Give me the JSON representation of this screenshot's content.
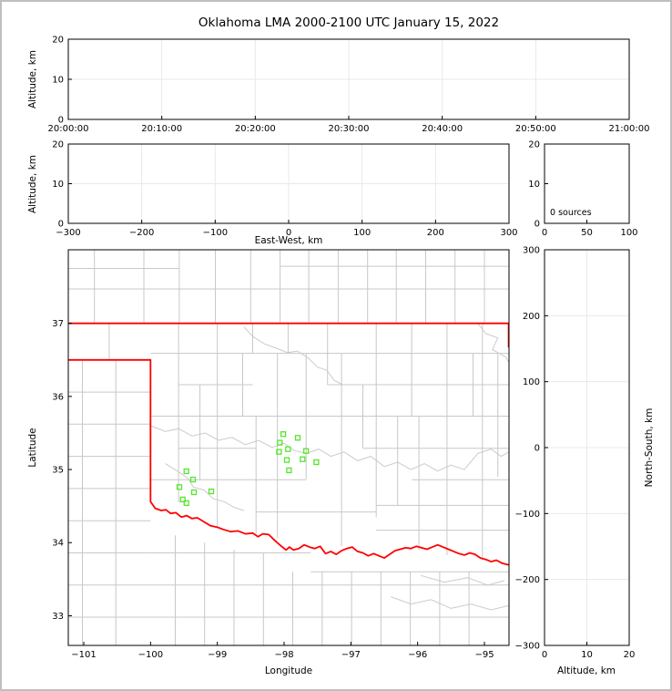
{
  "frame": {
    "background": "#ffffff",
    "border_color": "#bfbfbf"
  },
  "title": "Oklahoma LMA 2000-2100 UTC January 15, 2022",
  "colors": {
    "axis": "#000000",
    "grid": "#e9e9e9",
    "county_lines": "#c8c8c8",
    "rivers": "#cbcbcb",
    "state_border": "#ff0000",
    "source_marker": "#55e62b",
    "text": "#000000"
  },
  "chart_data": [
    {
      "id": "altitude_vs_time",
      "type": "scatter",
      "xlabel": "",
      "ylabel": "Altitude, km",
      "xticks": [
        "20:00:00",
        "20:10:00",
        "20:20:00",
        "20:30:00",
        "20:40:00",
        "20:50:00",
        "21:00:00"
      ],
      "xtick_type": "categorical",
      "ylim": [
        0,
        20
      ],
      "yticks": [
        0,
        10,
        20
      ],
      "grid": true,
      "points": []
    },
    {
      "id": "altitude_vs_east_west",
      "type": "scatter",
      "xlabel": "East-West, km",
      "ylabel": "Altitude, km",
      "xlim": [
        -300,
        300
      ],
      "xticks": [
        -300,
        -200,
        -100,
        0,
        100,
        200,
        300
      ],
      "ylim": [
        0,
        20
      ],
      "yticks": [
        0,
        10,
        20
      ],
      "grid": true,
      "points": []
    },
    {
      "id": "altitude_source_histogram",
      "type": "line",
      "annotation": "0 sources",
      "xlim": [
        0,
        100
      ],
      "xticks": [
        0,
        50,
        100
      ],
      "ylim": [
        0,
        20
      ],
      "yticks": [
        0,
        10,
        20
      ],
      "grid": false,
      "points": []
    },
    {
      "id": "plan_view_map",
      "type": "scatter",
      "xlabel": "Longitude",
      "ylabel": "Latitude",
      "xlim": [
        -101.232,
        -94.632
      ],
      "xticks": [
        -101,
        -100,
        -99,
        -98,
        -97,
        -96,
        -95
      ],
      "ylim": [
        32.594,
        38.006
      ],
      "yticks": [
        33,
        34,
        35,
        36,
        37
      ],
      "grid": false,
      "points": [
        [
          -98.013,
          35.484
        ],
        [
          -97.795,
          35.434
        ],
        [
          -98.064,
          35.367
        ],
        [
          -97.941,
          35.279
        ],
        [
          -97.672,
          35.254
        ],
        [
          -98.077,
          35.242
        ],
        [
          -97.959,
          35.13
        ],
        [
          -97.723,
          35.142
        ],
        [
          -97.518,
          35.101
        ],
        [
          -97.927,
          34.989
        ],
        [
          -99.463,
          34.976
        ],
        [
          -99.364,
          34.864
        ],
        [
          -99.568,
          34.76
        ],
        [
          -99.35,
          34.689
        ],
        [
          -99.091,
          34.702
        ],
        [
          -99.518,
          34.59
        ],
        [
          -99.463,
          34.54
        ]
      ]
    },
    {
      "id": "altitude_vs_north_south",
      "type": "scatter",
      "xlabel": "Altitude, km",
      "ylabel_right": "North-South, km",
      "xlim": [
        0,
        20
      ],
      "xticks": [
        0,
        10,
        20
      ],
      "ylim": [
        -300,
        300
      ],
      "yticks": [
        -300,
        -200,
        -100,
        0,
        100,
        200,
        300
      ],
      "grid": true,
      "points": []
    }
  ],
  "map_layers": {
    "state_border": [
      [
        [
          -101.24,
          37.0
        ],
        [
          -94.6,
          37.0
        ]
      ],
      [
        [
          -94.637,
          37.0
        ],
        [
          -94.637,
          36.67
        ]
      ],
      [
        [
          -101.24,
          36.5
        ],
        [
          -100.0,
          36.5
        ],
        [
          -100.0,
          34.56
        ],
        [
          -99.93,
          34.47
        ],
        [
          -99.84,
          34.44
        ],
        [
          -99.77,
          34.45
        ],
        [
          -99.7,
          34.4
        ],
        [
          -99.62,
          34.41
        ],
        [
          -99.54,
          34.35
        ],
        [
          -99.46,
          34.37
        ],
        [
          -99.38,
          34.33
        ],
        [
          -99.3,
          34.34
        ],
        [
          -99.21,
          34.29
        ],
        [
          -99.1,
          34.23
        ],
        [
          -99.0,
          34.21
        ],
        [
          -98.91,
          34.18
        ],
        [
          -98.8,
          34.15
        ],
        [
          -98.69,
          34.16
        ],
        [
          -98.58,
          34.12
        ],
        [
          -98.47,
          34.13
        ],
        [
          -98.39,
          34.08
        ],
        [
          -98.32,
          34.12
        ],
        [
          -98.23,
          34.11
        ],
        [
          -98.14,
          34.03
        ],
        [
          -98.09,
          33.99
        ],
        [
          -98.04,
          33.95
        ],
        [
          -97.97,
          33.9
        ],
        [
          -97.92,
          33.94
        ],
        [
          -97.86,
          33.9
        ],
        [
          -97.78,
          33.92
        ],
        [
          -97.7,
          33.97
        ],
        [
          -97.62,
          33.94
        ],
        [
          -97.54,
          33.92
        ],
        [
          -97.46,
          33.95
        ],
        [
          -97.38,
          33.85
        ],
        [
          -97.3,
          33.88
        ],
        [
          -97.22,
          33.84
        ],
        [
          -97.14,
          33.89
        ],
        [
          -97.06,
          33.92
        ],
        [
          -96.98,
          33.94
        ],
        [
          -96.9,
          33.88
        ],
        [
          -96.82,
          33.86
        ],
        [
          -96.74,
          33.82
        ],
        [
          -96.66,
          33.85
        ],
        [
          -96.58,
          33.82
        ],
        [
          -96.5,
          33.79
        ],
        [
          -96.42,
          33.84
        ],
        [
          -96.34,
          33.89
        ],
        [
          -96.26,
          33.91
        ],
        [
          -96.18,
          33.93
        ],
        [
          -96.1,
          33.92
        ],
        [
          -96.02,
          33.95
        ],
        [
          -95.94,
          33.93
        ],
        [
          -95.86,
          33.91
        ],
        [
          -95.78,
          33.94
        ],
        [
          -95.7,
          33.97
        ],
        [
          -95.62,
          33.94
        ],
        [
          -95.54,
          33.91
        ],
        [
          -95.46,
          33.88
        ],
        [
          -95.38,
          33.85
        ],
        [
          -95.3,
          33.83
        ],
        [
          -95.22,
          33.86
        ],
        [
          -95.14,
          33.84
        ],
        [
          -95.06,
          33.79
        ],
        [
          -94.98,
          33.77
        ],
        [
          -94.9,
          33.74
        ],
        [
          -94.82,
          33.76
        ],
        [
          -94.74,
          33.72
        ],
        [
          -94.66,
          33.7
        ],
        [
          -94.6,
          33.69
        ]
      ]
    ],
    "counties": [
      [
        -100.84,
        37.0,
        -100.84,
        38.01
      ],
      [
        -100.1,
        37.0,
        -100.1,
        38.01
      ],
      [
        -99.57,
        37.0,
        -99.57,
        38.01
      ],
      [
        -99.03,
        37.0,
        -99.03,
        38.01
      ],
      [
        -98.5,
        37.0,
        -98.5,
        38.01
      ],
      [
        -98.06,
        37.0,
        -98.06,
        38.01
      ],
      [
        -97.63,
        37.0,
        -97.63,
        38.01
      ],
      [
        -97.19,
        37.0,
        -97.19,
        38.01
      ],
      [
        -96.75,
        37.0,
        -96.75,
        38.01
      ],
      [
        -96.32,
        37.0,
        -96.32,
        38.01
      ],
      [
        -95.88,
        37.0,
        -95.88,
        38.01
      ],
      [
        -95.44,
        37.0,
        -95.44,
        38.01
      ],
      [
        -95.0,
        37.0,
        -95.0,
        38.01
      ],
      [
        -101.24,
        37.47,
        -94.63,
        37.47
      ],
      [
        -101.24,
        37.75,
        -99.57,
        37.75
      ],
      [
        -98.06,
        37.78,
        -94.63,
        37.78
      ],
      [
        -100.62,
        36.5,
        -100.62,
        37.0
      ],
      [
        -101.02,
        32.59,
        -101.02,
        36.5
      ],
      [
        -100.52,
        32.59,
        -100.52,
        36.5
      ],
      [
        -101.24,
        36.06,
        -100.0,
        36.06
      ],
      [
        -101.24,
        35.62,
        -100.0,
        35.62
      ],
      [
        -101.24,
        35.18,
        -100.0,
        35.18
      ],
      [
        -101.24,
        34.74,
        -100.0,
        34.74
      ],
      [
        -101.24,
        34.3,
        -100.0,
        34.3
      ],
      [
        -101.24,
        33.86,
        -100.0,
        33.86
      ],
      [
        -100.0,
        33.86,
        -97.6,
        33.86
      ],
      [
        -97.6,
        33.6,
        -94.63,
        33.6
      ],
      [
        -101.24,
        33.42,
        -94.63,
        33.42
      ],
      [
        -101.24,
        32.98,
        -94.63,
        32.98
      ],
      [
        -99.63,
        32.59,
        -99.63,
        34.1
      ],
      [
        -99.19,
        32.59,
        -99.19,
        34.0
      ],
      [
        -98.75,
        32.59,
        -98.75,
        33.9
      ],
      [
        -98.31,
        32.59,
        -98.31,
        33.86
      ],
      [
        -97.87,
        32.59,
        -97.87,
        33.6
      ],
      [
        -97.43,
        32.59,
        -97.43,
        33.6
      ],
      [
        -96.99,
        32.59,
        -96.99,
        33.6
      ],
      [
        -96.55,
        32.59,
        -96.55,
        33.6
      ],
      [
        -96.11,
        32.59,
        -96.11,
        33.6
      ],
      [
        -95.67,
        32.59,
        -95.67,
        33.6
      ],
      [
        -95.23,
        32.59,
        -95.23,
        33.6
      ],
      [
        -99.58,
        34.55,
        -99.58,
        37.0
      ],
      [
        -99.26,
        34.85,
        -99.26,
        36.16
      ],
      [
        -99.0,
        34.21,
        -99.0,
        37.0
      ],
      [
        -98.62,
        35.73,
        -98.62,
        36.59
      ],
      [
        -98.47,
        36.59,
        -98.47,
        37.0
      ],
      [
        -98.42,
        34.12,
        -98.42,
        35.73
      ],
      [
        -98.1,
        34.06,
        -98.1,
        36.59
      ],
      [
        -97.94,
        36.59,
        -97.94,
        37.0
      ],
      [
        -97.67,
        34.87,
        -97.67,
        36.59
      ],
      [
        -97.35,
        36.16,
        -97.35,
        37.0
      ],
      [
        -97.14,
        33.95,
        -97.14,
        36.59
      ],
      [
        -96.82,
        35.29,
        -96.82,
        36.16
      ],
      [
        -96.62,
        34.35,
        -96.62,
        37.0
      ],
      [
        -96.3,
        34.51,
        -96.3,
        35.73
      ],
      [
        -96.09,
        35.73,
        -96.09,
        37.0
      ],
      [
        -95.98,
        33.9,
        -95.98,
        35.73
      ],
      [
        -95.56,
        33.83,
        -95.56,
        37.0
      ],
      [
        -95.17,
        35.73,
        -95.17,
        36.59
      ],
      [
        -95.03,
        33.78,
        -95.03,
        37.0
      ],
      [
        -94.8,
        34.9,
        -94.8,
        36.59
      ],
      [
        -100.0,
        36.59,
        -94.63,
        36.59
      ],
      [
        -99.58,
        36.16,
        -98.47,
        36.16
      ],
      [
        -97.35,
        36.16,
        -94.63,
        36.16
      ],
      [
        -100.0,
        35.73,
        -94.63,
        35.73
      ],
      [
        -99.58,
        35.29,
        -98.42,
        35.29
      ],
      [
        -96.82,
        35.29,
        -94.63,
        35.29
      ],
      [
        -100.0,
        34.86,
        -97.67,
        34.86
      ],
      [
        -96.09,
        34.86,
        -94.63,
        34.86
      ],
      [
        -98.42,
        34.42,
        -96.62,
        34.42
      ],
      [
        -96.62,
        34.51,
        -94.63,
        34.51
      ],
      [
        -96.62,
        34.17,
        -94.63,
        34.17
      ]
    ],
    "rivers": [
      [
        [
          -98.6,
          36.95
        ],
        [
          -98.47,
          36.82
        ],
        [
          -98.3,
          36.72
        ],
        [
          -98.12,
          36.66
        ],
        [
          -97.95,
          36.6
        ],
        [
          -97.8,
          36.62
        ],
        [
          -97.63,
          36.52
        ],
        [
          -97.5,
          36.4
        ],
        [
          -97.36,
          36.36
        ],
        [
          -97.25,
          36.22
        ],
        [
          -97.12,
          36.16
        ]
      ],
      [
        [
          -95.1,
          37.0
        ],
        [
          -94.98,
          36.86
        ],
        [
          -94.8,
          36.8
        ],
        [
          -94.88,
          36.64
        ],
        [
          -94.68,
          36.54
        ],
        [
          -94.63,
          36.46
        ]
      ],
      [
        [
          -100.0,
          35.6
        ],
        [
          -99.78,
          35.52
        ],
        [
          -99.58,
          35.56
        ],
        [
          -99.38,
          35.46
        ],
        [
          -99.18,
          35.5
        ],
        [
          -98.98,
          35.4
        ],
        [
          -98.78,
          35.44
        ],
        [
          -98.58,
          35.34
        ],
        [
          -98.38,
          35.4
        ],
        [
          -98.18,
          35.3
        ],
        [
          -98.0,
          35.36
        ],
        [
          -97.85,
          35.26
        ],
        [
          -97.66,
          35.22
        ],
        [
          -97.48,
          35.28
        ],
        [
          -97.3,
          35.18
        ],
        [
          -97.1,
          35.24
        ],
        [
          -96.9,
          35.12
        ],
        [
          -96.7,
          35.18
        ],
        [
          -96.5,
          35.04
        ],
        [
          -96.3,
          35.1
        ],
        [
          -96.1,
          35.0
        ],
        [
          -95.9,
          35.08
        ],
        [
          -95.7,
          34.98
        ],
        [
          -95.5,
          35.06
        ],
        [
          -95.3,
          35.0
        ],
        [
          -95.1,
          35.22
        ],
        [
          -94.9,
          35.28
        ],
        [
          -94.75,
          35.18
        ],
        [
          -94.63,
          35.24
        ]
      ],
      [
        [
          -99.78,
          35.08
        ],
        [
          -99.6,
          34.98
        ],
        [
          -99.44,
          34.88
        ],
        [
          -99.36,
          34.76
        ],
        [
          -99.2,
          34.72
        ],
        [
          -99.06,
          34.6
        ],
        [
          -98.9,
          34.56
        ],
        [
          -98.74,
          34.48
        ],
        [
          -98.6,
          34.44
        ]
      ],
      [
        [
          -96.4,
          33.26
        ],
        [
          -96.1,
          33.16
        ],
        [
          -95.8,
          33.22
        ],
        [
          -95.5,
          33.1
        ],
        [
          -95.2,
          33.16
        ],
        [
          -94.9,
          33.08
        ],
        [
          -94.63,
          33.14
        ]
      ],
      [
        [
          -95.95,
          33.55
        ],
        [
          -95.6,
          33.46
        ],
        [
          -95.25,
          33.52
        ],
        [
          -94.95,
          33.42
        ],
        [
          -94.7,
          33.48
        ]
      ]
    ]
  }
}
